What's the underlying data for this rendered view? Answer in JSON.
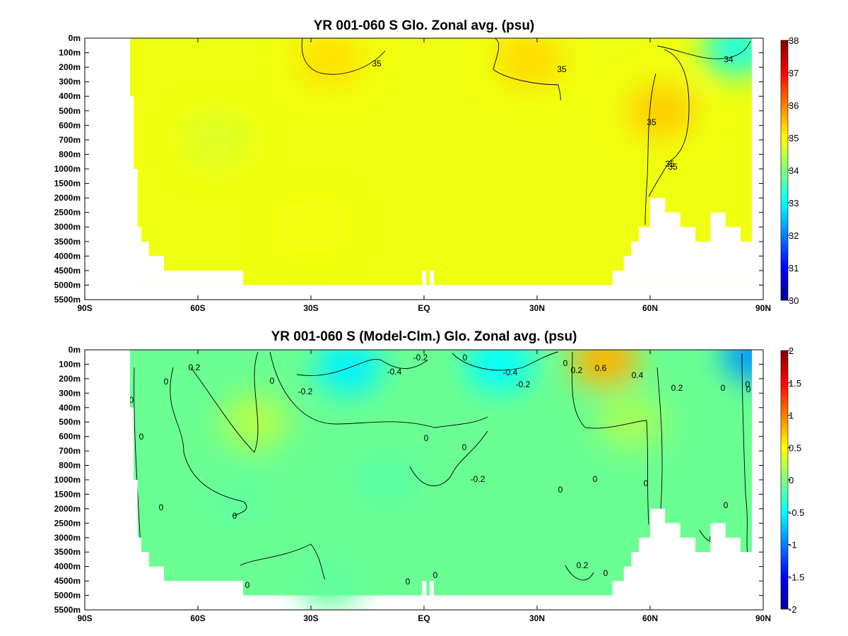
{
  "chart_data": [
    {
      "type": "heatmap",
      "title": "YR 001-060 S Glo. Zonal avg. (psu)",
      "x_ticks": [
        "90S",
        "60S",
        "30S",
        "EQ",
        "30N",
        "60N",
        "90N"
      ],
      "y_ticks": [
        "0m",
        "100m",
        "200m",
        "300m",
        "400m",
        "500m",
        "600m",
        "700m",
        "800m",
        "1000m",
        "1500m",
        "2000m",
        "2500m",
        "3000m",
        "3500m",
        "4000m",
        "4500m",
        "5000m",
        "5500m"
      ],
      "xlim": [
        -90,
        90
      ],
      "colorbar": {
        "min": 30,
        "max": 38,
        "ticks": [
          "30",
          "31",
          "32",
          "33",
          "34",
          "35",
          "36",
          "37",
          "38"
        ]
      },
      "contour_labels": [
        "35",
        "35",
        "35",
        "35",
        "35",
        "34"
      ],
      "features": [
        {
          "lat": -25,
          "level": 1.5,
          "value": 35.25
        },
        {
          "lat": 28,
          "level": 1.5,
          "value": 35.3
        },
        {
          "lat": 63,
          "level": 5,
          "value": 35.4
        },
        {
          "lat": 83,
          "level": 0.7,
          "value": 33.2
        },
        {
          "lat": -55,
          "level": 7,
          "value": 34.7
        },
        {
          "lat": -30,
          "level": 13,
          "value": 34.9
        }
      ]
    },
    {
      "type": "heatmap",
      "title": "YR 001-060 S (Model-Clm.) Glo. Zonal avg. (psu)",
      "x_ticks": [
        "90S",
        "60S",
        "30S",
        "EQ",
        "30N",
        "60N",
        "90N"
      ],
      "y_ticks": [
        "0m",
        "100m",
        "200m",
        "300m",
        "400m",
        "500m",
        "600m",
        "700m",
        "800m",
        "1000m",
        "1500m",
        "2000m",
        "2500m",
        "3000m",
        "3500m",
        "4000m",
        "4500m",
        "5000m",
        "5500m"
      ],
      "xlim": [
        -90,
        90
      ],
      "colorbar": {
        "min": -2,
        "max": 2,
        "ticks": [
          "-2",
          "-1.5",
          "-1",
          "-0.5",
          "0",
          "0.5",
          "1",
          "1.5",
          "2"
        ]
      },
      "contour_labels": [
        "0.2",
        "-0.2",
        "-0.4",
        "-0.2",
        "0",
        "-0.4",
        "-0.2",
        "0",
        "0.2",
        "0.6",
        "0.4",
        "0.2",
        "0",
        "0",
        "0",
        "0",
        "0",
        "0",
        "0",
        "0",
        "-0.2",
        "0",
        "0",
        "0",
        "0",
        "0",
        "0",
        "0",
        "0.2",
        "0",
        "0",
        "0",
        "0",
        "0"
      ],
      "features": [
        {
          "lat": -20,
          "level": 1.2,
          "value": -0.55
        },
        {
          "lat": 20,
          "level": 1.0,
          "value": -0.5
        },
        {
          "lat": 48,
          "level": 0.7,
          "value": 0.8
        },
        {
          "lat": 88,
          "level": 0.3,
          "value": -0.9
        },
        {
          "lat": -45,
          "level": 5,
          "value": 0.2
        },
        {
          "lat": 55,
          "level": 5,
          "value": 0.15
        },
        {
          "lat": -10,
          "level": 9,
          "value": -0.15
        },
        {
          "lat": -50,
          "level": 10.5,
          "value": -0.12
        },
        {
          "lat": -25,
          "level": 16,
          "value": -0.12
        }
      ]
    }
  ]
}
